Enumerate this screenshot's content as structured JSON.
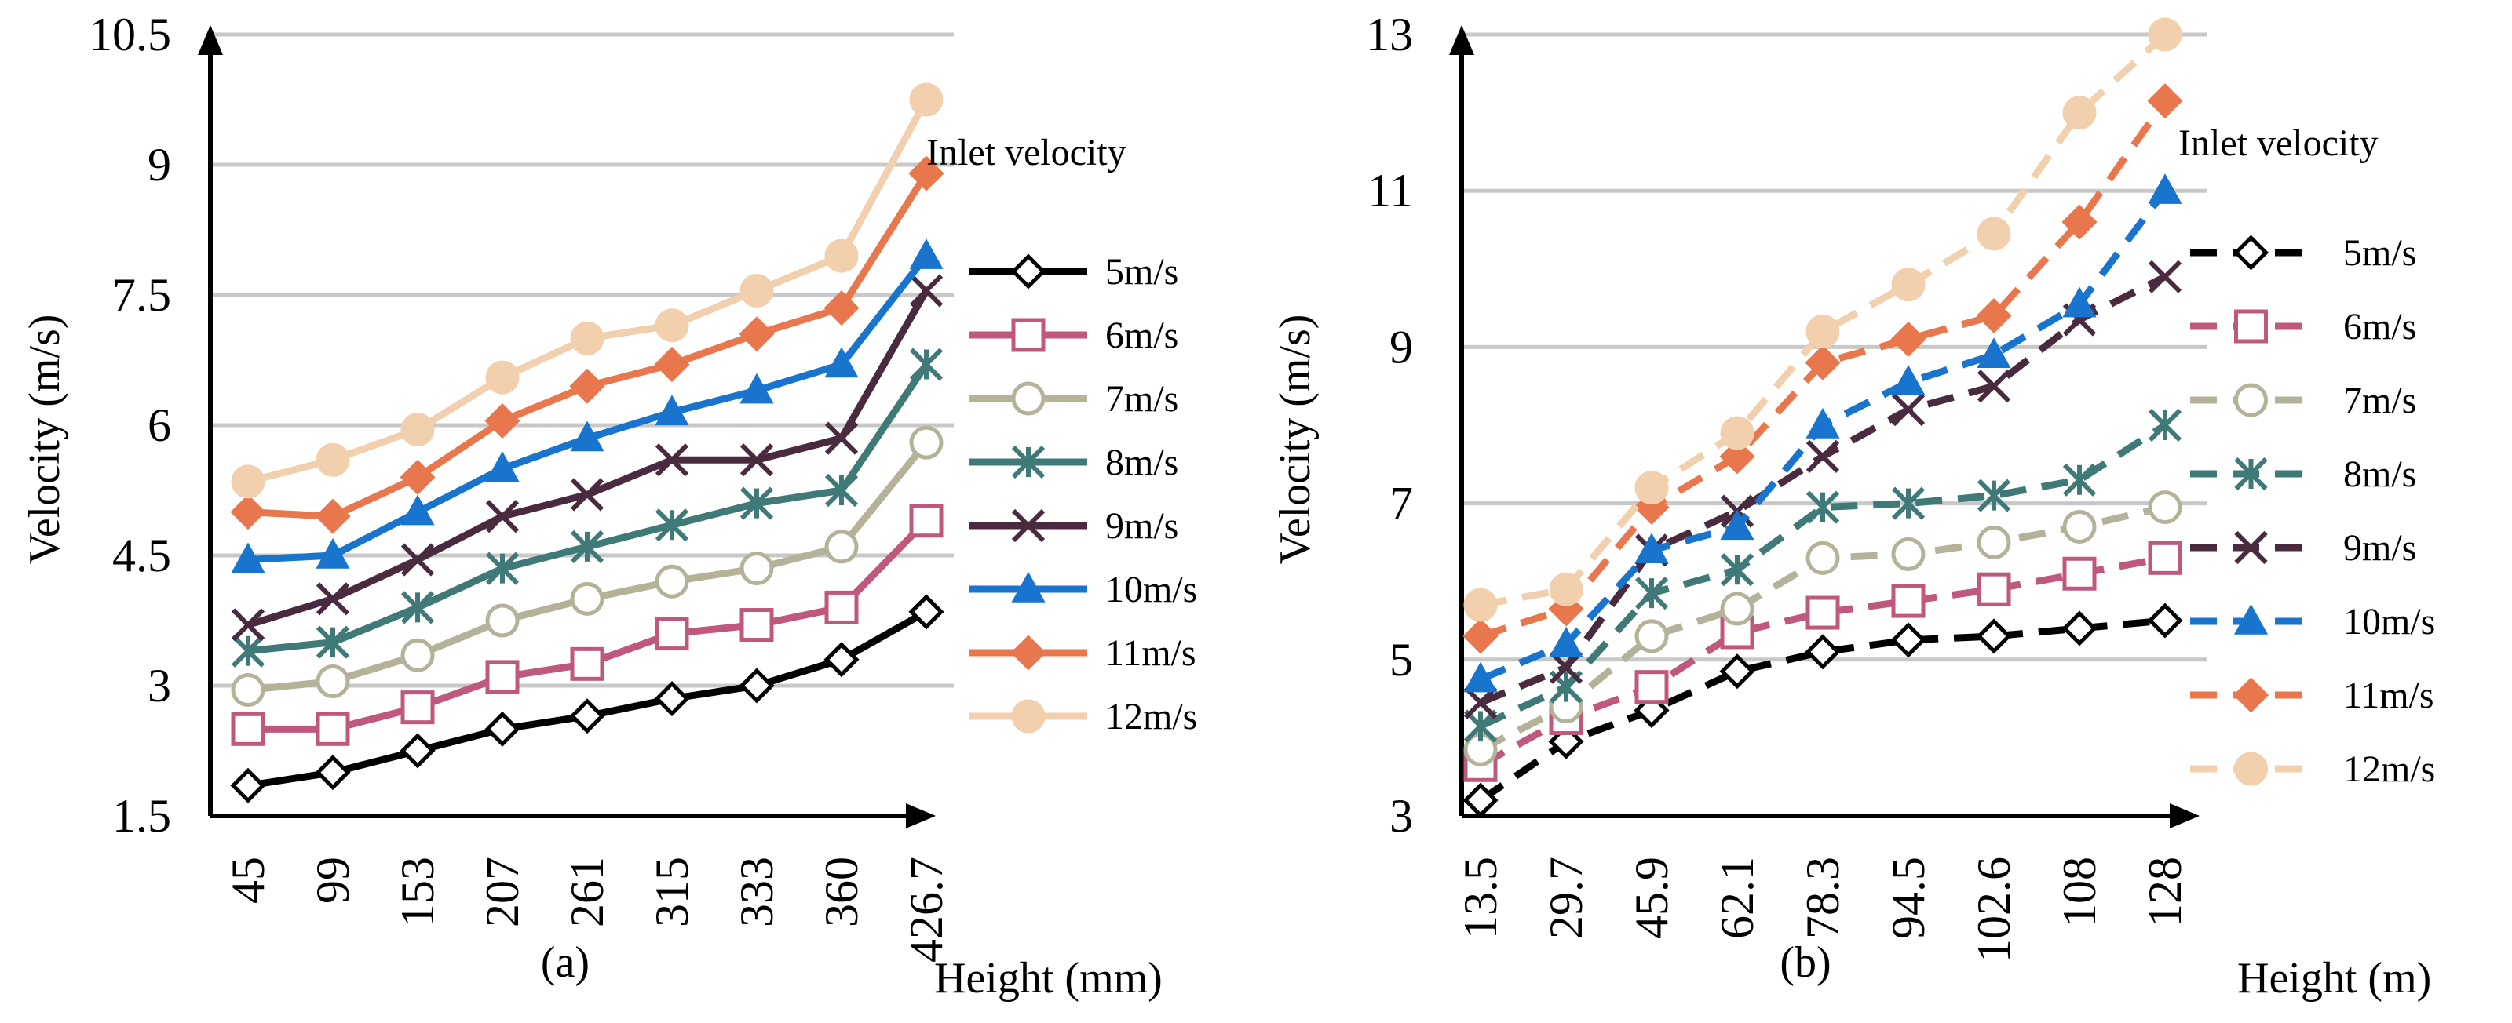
{
  "chart_data": [
    {
      "type": "line",
      "panel_label": "(a)",
      "xlabel": "Height (mm)",
      "ylabel": "Velocity (m/s)",
      "categories": [
        "45",
        "99",
        "153",
        "207",
        "261",
        "315",
        "333",
        "360",
        "426.7"
      ],
      "y_ticks": [
        "1.5",
        "3",
        "4.5",
        "6",
        "7.5",
        "9",
        "10.5"
      ],
      "ylim": [
        1.5,
        10.5
      ],
      "grid": true,
      "legend_title": "Inlet velocity",
      "legend_position": "right",
      "series": [
        {
          "name": "5m/s",
          "color": "#000000",
          "marker": "diamond-open",
          "dash": "solid",
          "values": [
            1.85,
            2.0,
            2.25,
            2.5,
            2.65,
            2.85,
            3.0,
            3.3,
            3.85
          ]
        },
        {
          "name": "6m/s",
          "color": "#c0587e",
          "marker": "square-open",
          "dash": "solid",
          "values": [
            2.5,
            2.5,
            2.75,
            3.1,
            3.25,
            3.6,
            3.7,
            3.9,
            4.9
          ]
        },
        {
          "name": "7m/s",
          "color": "#b5b29a",
          "marker": "circle-open",
          "dash": "solid",
          "values": [
            2.95,
            3.05,
            3.35,
            3.75,
            4.0,
            4.2,
            4.35,
            4.6,
            5.8
          ]
        },
        {
          "name": "8m/s",
          "color": "#3f7a78",
          "marker": "star",
          "dash": "solid",
          "values": [
            3.4,
            3.5,
            3.9,
            4.35,
            4.6,
            4.85,
            5.1,
            5.25,
            6.7
          ]
        },
        {
          "name": "9m/s",
          "color": "#4a2a3e",
          "marker": "x",
          "dash": "solid",
          "values": [
            3.7,
            4.0,
            4.45,
            4.95,
            5.2,
            5.6,
            5.6,
            5.85,
            7.55
          ]
        },
        {
          "name": "10m/s",
          "color": "#1874cd",
          "marker": "triangle",
          "dash": "solid",
          "values": [
            4.45,
            4.5,
            5.0,
            5.5,
            5.85,
            6.15,
            6.4,
            6.7,
            7.95
          ]
        },
        {
          "name": "11m/s",
          "color": "#e8774d",
          "marker": "diamond",
          "dash": "solid",
          "values": [
            5.0,
            4.95,
            5.4,
            6.05,
            6.45,
            6.7,
            7.05,
            7.35,
            8.9
          ]
        },
        {
          "name": "12m/s",
          "color": "#f2cfad",
          "marker": "circle",
          "dash": "solid",
          "values": [
            5.35,
            5.6,
            5.95,
            6.55,
            7.0,
            7.15,
            7.55,
            7.95,
            9.75
          ]
        }
      ]
    },
    {
      "type": "line",
      "panel_label": "(b)",
      "xlabel": "Height (m)",
      "ylabel": "Velocity (m/s)",
      "categories": [
        "13.5",
        "29.7",
        "45.9",
        "62.1",
        "78.3",
        "94.5",
        "102.6",
        "108",
        "128"
      ],
      "y_ticks": [
        "3",
        "5",
        "7",
        "9",
        "11",
        "13"
      ],
      "ylim": [
        3,
        13
      ],
      "grid": true,
      "legend_title": "Inlet velocity",
      "legend_position": "right",
      "series": [
        {
          "name": "5m/s",
          "color": "#000000",
          "marker": "diamond-open",
          "dash": "dashed",
          "values": [
            3.2,
            3.95,
            4.35,
            4.85,
            5.1,
            5.25,
            5.3,
            5.4,
            5.5
          ]
        },
        {
          "name": "6m/s",
          "color": "#c0587e",
          "marker": "square-open",
          "dash": "dashed",
          "values": [
            3.65,
            4.25,
            4.65,
            5.35,
            5.6,
            5.75,
            5.9,
            6.1,
            6.3
          ]
        },
        {
          "name": "7m/s",
          "color": "#b5b29a",
          "marker": "circle-open",
          "dash": "dashed",
          "values": [
            3.85,
            4.4,
            5.3,
            5.65,
            6.3,
            6.35,
            6.5,
            6.7,
            6.95
          ]
        },
        {
          "name": "8m/s",
          "color": "#3f7a78",
          "marker": "star",
          "dash": "dashed",
          "values": [
            4.15,
            4.65,
            5.85,
            6.15,
            6.95,
            7.0,
            7.1,
            7.3,
            8.0
          ]
        },
        {
          "name": "9m/s",
          "color": "#4a2a3e",
          "marker": "x",
          "dash": "dashed",
          "values": [
            4.45,
            4.9,
            6.4,
            6.9,
            7.6,
            8.2,
            8.5,
            9.35,
            9.9
          ]
        },
        {
          "name": "10m/s",
          "color": "#1874cd",
          "marker": "triangle",
          "dash": "dashed",
          "values": [
            4.75,
            5.2,
            6.4,
            6.7,
            8.0,
            8.55,
            8.9,
            9.55,
            11.0
          ]
        },
        {
          "name": "11m/s",
          "color": "#e8774d",
          "marker": "diamond",
          "dash": "dashed",
          "values": [
            5.3,
            5.65,
            6.95,
            7.6,
            8.8,
            9.1,
            9.4,
            10.6,
            12.15
          ]
        },
        {
          "name": "12m/s",
          "color": "#f2cfad",
          "marker": "circle",
          "dash": "dashed",
          "values": [
            5.7,
            5.9,
            7.2,
            7.9,
            9.2,
            9.8,
            10.45,
            12.0,
            13.0
          ]
        }
      ]
    }
  ]
}
